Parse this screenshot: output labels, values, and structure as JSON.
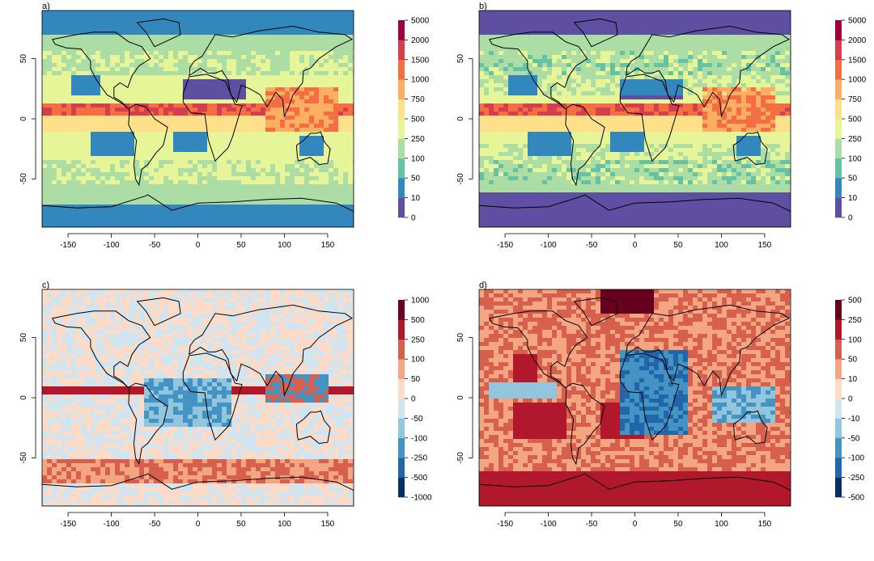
{
  "panels": [
    {
      "id": "a",
      "label": "a)",
      "x_ticks": [
        "-150",
        "-100",
        "-50",
        "0",
        "50",
        "100",
        "150"
      ],
      "y_ticks": [
        "50",
        "0",
        "-50"
      ],
      "colorbar_labels": [
        "5000",
        "2000",
        "1500",
        "1000",
        "750",
        "500",
        "250",
        "100",
        "50",
        "10",
        "0"
      ],
      "colors": [
        "#5e4fa2",
        "#3288bd",
        "#66c2a5",
        "#abdda4",
        "#e6f598",
        "#fee08b",
        "#fdae61",
        "#f46d43",
        "#d53e4f",
        "#9e0142"
      ]
    },
    {
      "id": "b",
      "label": "b)",
      "x_ticks": [
        "-150",
        "-100",
        "-50",
        "0",
        "50",
        "100",
        "150"
      ],
      "y_ticks": [
        "50",
        "0",
        "-50"
      ],
      "colorbar_labels": [
        "5000",
        "2000",
        "1500",
        "1000",
        "750",
        "500",
        "250",
        "100",
        "50",
        "10",
        "0"
      ],
      "colors": [
        "#5e4fa2",
        "#3288bd",
        "#66c2a5",
        "#abdda4",
        "#e6f598",
        "#fee08b",
        "#fdae61",
        "#f46d43",
        "#d53e4f",
        "#9e0142"
      ]
    },
    {
      "id": "c",
      "label": "c)",
      "x_ticks": [
        "-150",
        "-100",
        "-50",
        "0",
        "50",
        "100",
        "150"
      ],
      "y_ticks": [
        "50",
        "0",
        "-50"
      ],
      "colorbar_labels": [
        "1000",
        "500",
        "250",
        "100",
        "50",
        "0",
        "-50",
        "-100",
        "-250",
        "-500",
        "-1000"
      ],
      "colors": [
        "#053061",
        "#2166ac",
        "#4393c3",
        "#92c5de",
        "#d1e5f0",
        "#fddbc7",
        "#f4a582",
        "#d6604d",
        "#b2182b",
        "#67001f"
      ]
    },
    {
      "id": "d",
      "label": "d)",
      "x_ticks": [
        "-150",
        "-100",
        "-50",
        "0",
        "50",
        "100",
        "150"
      ],
      "y_ticks": [
        "50",
        "0",
        "-50"
      ],
      "colorbar_labels": [
        "500",
        "250",
        "100",
        "50",
        "10",
        "0",
        "-10",
        "-50",
        "-100",
        "-250",
        "-500"
      ],
      "colors": [
        "#053061",
        "#2166ac",
        "#4393c3",
        "#92c5de",
        "#d1e5f0",
        "#fddbc7",
        "#f4a582",
        "#d6604d",
        "#b2182b",
        "#67001f"
      ]
    }
  ]
}
